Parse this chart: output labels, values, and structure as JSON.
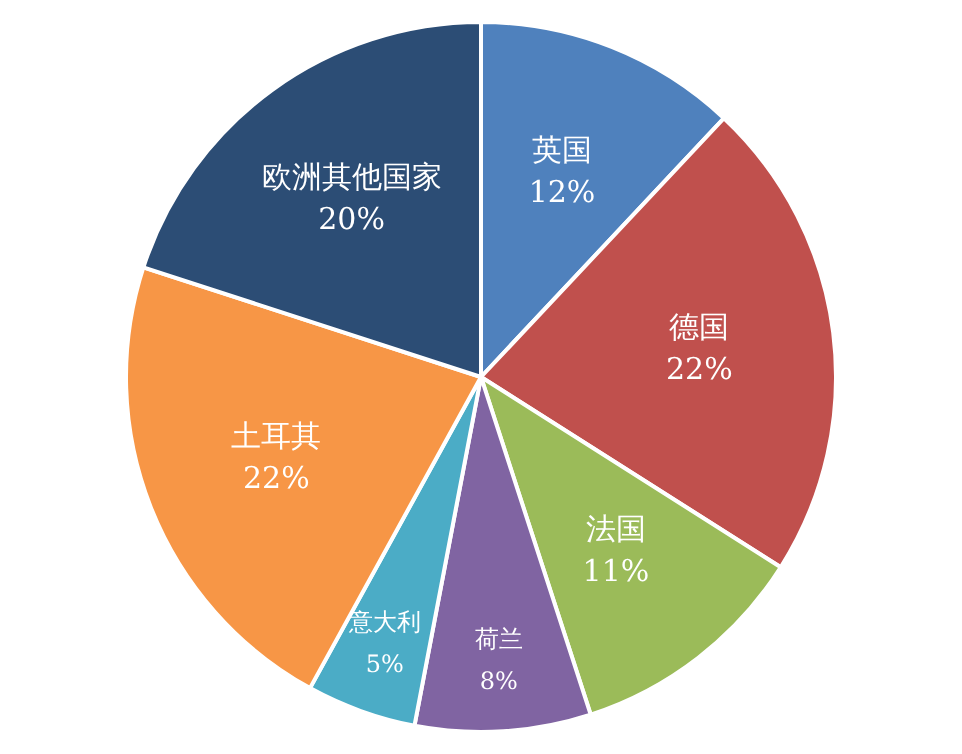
{
  "chart_data": {
    "type": "pie",
    "categories": [
      "英国",
      "德国",
      "法国",
      "荷兰",
      "意大利",
      "土耳其",
      "欧洲其他国家"
    ],
    "values": [
      12,
      22,
      11,
      8,
      5,
      22,
      20
    ],
    "value_labels": [
      "12%",
      "22%",
      "11%",
      "8%",
      "5%",
      "22%",
      "20%"
    ],
    "colors": [
      "#4f81bd",
      "#c0504d",
      "#9bbb59",
      "#8064a2",
      "#4bacc6",
      "#f79646",
      "#2c4d75"
    ],
    "legend": false
  }
}
